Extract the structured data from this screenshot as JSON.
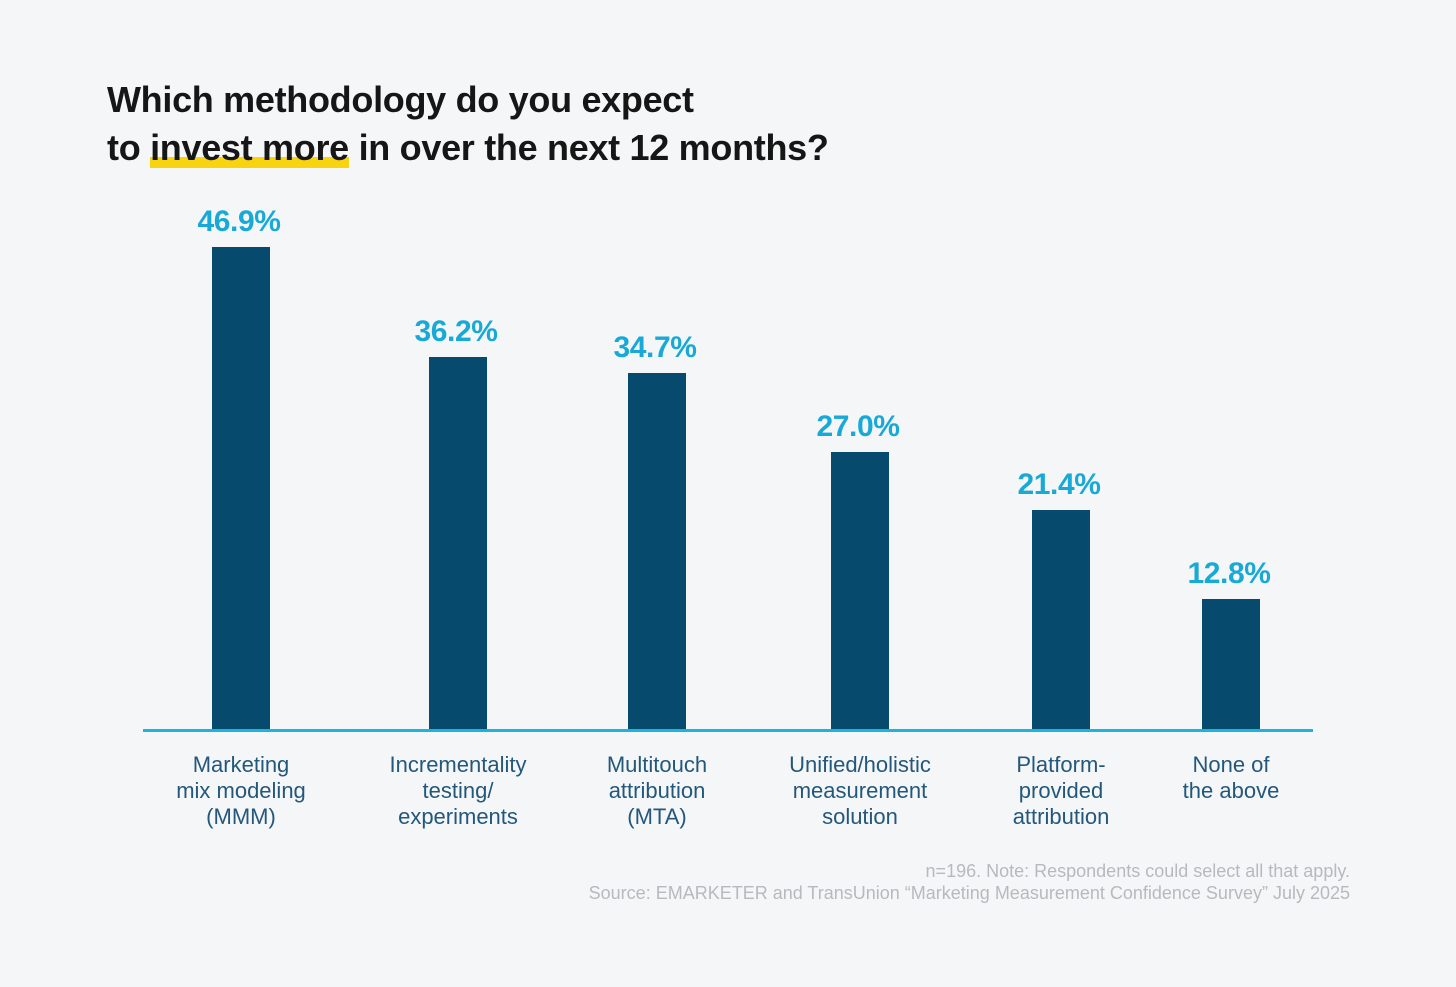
{
  "title": {
    "full": "Which methodology do you expect to invest more in over the next 12 months?",
    "line1": "Which methodology do you expect",
    "line2_pre": "to ",
    "line2_highlight": "invest more",
    "line2_post": " in over the next 12 months?"
  },
  "chart_data": {
    "type": "bar",
    "title": "Which methodology do you expect to invest more in over the next 12 months?",
    "categories": [
      "Marketing mix modeling (MMM)",
      "Incrementality testing/experiments",
      "Multitouch attribution (MTA)",
      "Unified/holistic measurement solution",
      "Platform-provided attribution",
      "None of the above"
    ],
    "category_lines": [
      [
        "Marketing",
        "mix modeling",
        "(MMM)"
      ],
      [
        "Incrementality",
        "testing/",
        "experiments"
      ],
      [
        "Multitouch",
        "attribution",
        "(MTA)"
      ],
      [
        "Unified/holistic",
        "measurement",
        "solution"
      ],
      [
        "Platform-",
        "provided",
        "attribution"
      ],
      [
        "None of",
        "the above"
      ]
    ],
    "values": [
      46.9,
      36.2,
      34.7,
      27.0,
      21.4,
      12.8
    ],
    "value_labels": [
      "46.9%",
      "36.2%",
      "34.7%",
      "27.0%",
      "21.4%",
      "12.8%"
    ],
    "xlabel": "",
    "ylabel": "",
    "ylim": [
      0,
      50
    ],
    "grid": false,
    "legend": false,
    "data_label_position": "above-bar",
    "note": "n=196. Note: Respondents could select all that apply.",
    "source": "Source: EMARKETER and TransUnion “Marketing Measurement Confidence Survey” July 2025"
  },
  "footer": {
    "note": "n=196. Note: Respondents could select all that apply.",
    "source": "Source: EMARKETER and TransUnion “Marketing Measurement Confidence Survey” July 2025"
  },
  "colors": {
    "background": "#f5f6f8",
    "title": "#161616",
    "highlight": "#f8d410",
    "bar": "#064b6e",
    "value_label": "#18a9d6",
    "axis_line": "#1cb4dc",
    "category_label": "#24587a",
    "footer": "#b7babd"
  }
}
